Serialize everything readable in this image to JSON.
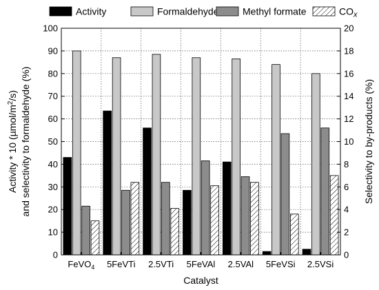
{
  "chart_data": {
    "type": "bar",
    "categories": [
      "FeVO4",
      "5FeVTi",
      "2.5VTi",
      "5FeVAl",
      "2.5VAl",
      "5FeVSi",
      "2.5VSi"
    ],
    "category_labels": [
      {
        "main": "FeVO",
        "sub": "4"
      },
      {
        "main": "5FeVTi",
        "sub": ""
      },
      {
        "main": "2.5VTi",
        "sub": ""
      },
      {
        "main": "5FeVAl",
        "sub": ""
      },
      {
        "main": "2.5VAl",
        "sub": ""
      },
      {
        "main": "5FeVSi",
        "sub": ""
      },
      {
        "main": "2.5VSi",
        "sub": ""
      }
    ],
    "series": [
      {
        "name": "Activity",
        "axis": "left",
        "fill": "#000000",
        "values": [
          43,
          63.5,
          56,
          28.5,
          41,
          1.5,
          2.5
        ]
      },
      {
        "name": "Formaldehyde",
        "axis": "left",
        "fill": "#c8c8c8",
        "values": [
          90,
          87,
          88.5,
          87,
          86.5,
          84,
          80
        ]
      },
      {
        "name": "Methyl formate",
        "axis": "right",
        "fill": "#8c8c8c",
        "values": [
          4.3,
          5.7,
          6.4,
          8.3,
          6.9,
          10.7,
          11.2
        ]
      },
      {
        "name": "CO",
        "name_sub": "x",
        "axis": "right",
        "fill": "hatch",
        "values": [
          3.0,
          6.4,
          4.1,
          6.1,
          6.4,
          3.6,
          7.0
        ]
      }
    ],
    "xlabel": "Catalyst",
    "ylabel_line1": "Activity * 10 (µmol/m²/s)",
    "ylabel_line2": "and selectivity to formaldehyde (%)",
    "y2label": "Selectivity to by-products (%)",
    "ylim": [
      0,
      100
    ],
    "y2lim": [
      0,
      20
    ],
    "yticks": [
      0,
      10,
      20,
      30,
      40,
      50,
      60,
      70,
      80,
      90,
      100
    ],
    "y2ticks": [
      0,
      2,
      4,
      6,
      8,
      10,
      12,
      14,
      16,
      18,
      20
    ],
    "grid": true,
    "legend_position": "top"
  }
}
